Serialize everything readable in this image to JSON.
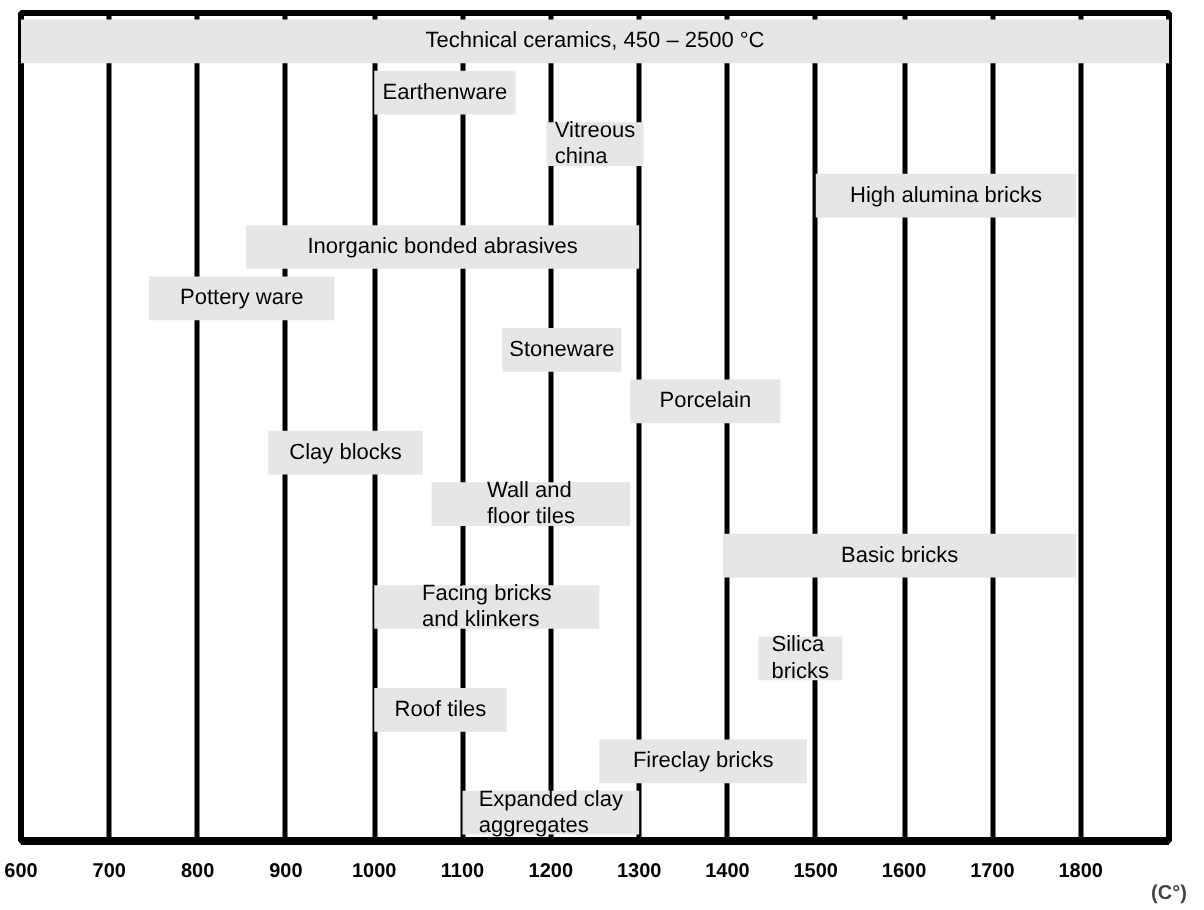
{
  "chart_data": {
    "type": "bar",
    "orientation": "horizontal",
    "xlabel": "(C°)",
    "categories": [
      "Technical ceramics, 450 – 2500 °C",
      "Earthenware",
      "Vitreous china",
      "High alumina bricks",
      "Inorganic bonded abrasives",
      "Pottery ware",
      "Stoneware",
      "Porcelain",
      "Clay blocks",
      "Wall and floor tiles",
      "Basic bricks",
      "Facing bricks and klinkers",
      "Silica bricks",
      "Roof tiles",
      "Fireclay bricks",
      "Expanded clay aggregates"
    ],
    "base": [
      600,
      1000,
      1195,
      1500,
      855,
      745,
      1145,
      1290,
      880,
      1065,
      1395,
      1000,
      1435,
      1000,
      1255,
      1100
    ],
    "values": [
      1300,
      160,
      110,
      295,
      445,
      210,
      135,
      170,
      175,
      225,
      400,
      255,
      95,
      150,
      235,
      200
    ],
    "color": "#e6e6e6",
    "xlim": [
      600,
      1900
    ],
    "xticks": [
      600,
      700,
      800,
      900,
      1000,
      1100,
      1200,
      1300,
      1400,
      1500,
      1600,
      1700,
      1800
    ],
    "grid": "x",
    "tick_labels": "x"
  }
}
